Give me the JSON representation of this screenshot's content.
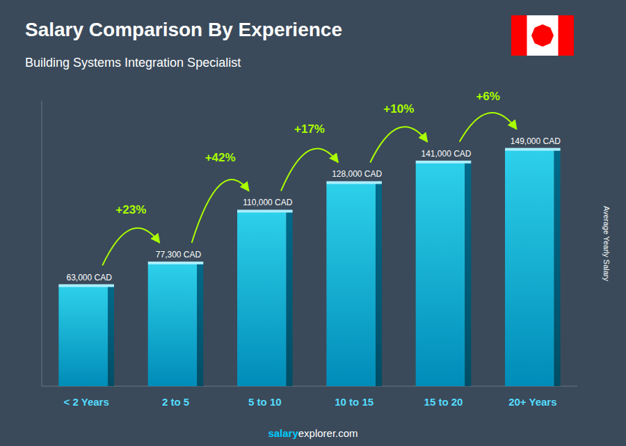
{
  "chart_data": {
    "type": "bar",
    "title": "Salary Comparison By Experience",
    "subtitle": "Building Systems Integration Specialist",
    "categories": [
      "< 2 Years",
      "2 to 5",
      "5 to 10",
      "10 to 15",
      "15 to 20",
      "20+ Years"
    ],
    "values": [
      63000,
      77300,
      110000,
      128000,
      141000,
      149000
    ],
    "value_labels": [
      "63,000 CAD",
      "77,300 CAD",
      "110,000 CAD",
      "128,000 CAD",
      "141,000 CAD",
      "149,000 CAD"
    ],
    "data_labels": true,
    "color": "#008cb8",
    "ylim": [
      0,
      180000
    ],
    "ylabel": "Average Yearly Salary",
    "tick_labels": "x",
    "grid": false,
    "annotations": [
      {
        "text": "+23%",
        "color": "#aaff00"
      },
      {
        "text": "+42%",
        "color": "#aaff00"
      },
      {
        "text": "+17%",
        "color": "#aaff00"
      },
      {
        "text": "+10%",
        "color": "#aaff00"
      },
      {
        "text": "+6%",
        "color": "#aaff00"
      }
    ],
    "footer": [
      "salary",
      "explorer.com"
    ]
  }
}
